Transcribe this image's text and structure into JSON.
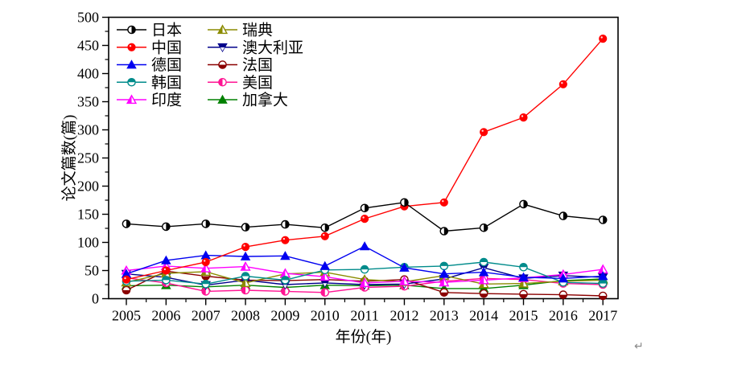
{
  "chart_data": {
    "type": "line",
    "title": "",
    "xlabel": "年份(年)",
    "ylabel": "论文篇数(篇)",
    "x_categories": [
      "2005",
      "2006",
      "2007",
      "2008",
      "2009",
      "2010",
      "2011",
      "2012",
      "2013",
      "2014",
      "2015",
      "2016",
      "2017"
    ],
    "ylim": [
      0,
      500
    ],
    "y_ticks": [
      0,
      50,
      100,
      150,
      200,
      250,
      300,
      350,
      400,
      450,
      500
    ],
    "y_minor_step": 25,
    "grid": "off",
    "legend_position": "top-left-inside",
    "legend_columns": [
      [
        "日本",
        "中国",
        "德国",
        "韩国",
        "印度"
      ],
      [
        "瑞典",
        "澳大利亚",
        "法国",
        "美国",
        "加拿大"
      ]
    ],
    "series": [
      {
        "id": "japan",
        "name": "日本",
        "color": "#000000",
        "marker": "circle-right",
        "values": [
          133,
          128,
          133,
          127,
          132,
          126,
          161,
          171,
          120,
          126,
          168,
          147,
          140
        ]
      },
      {
        "id": "china",
        "name": "中国",
        "color": "#ff0000",
        "marker": "circle",
        "values": [
          34,
          50,
          65,
          92,
          104,
          111,
          142,
          164,
          171,
          296,
          322,
          381,
          462
        ]
      },
      {
        "id": "germany",
        "name": "德国",
        "color": "#0000f0",
        "marker": "tri-up",
        "values": [
          44,
          68,
          77,
          75,
          76,
          58,
          93,
          55,
          44,
          47,
          38,
          36,
          40
        ]
      },
      {
        "id": "korea",
        "name": "韩国",
        "color": "#008b8b",
        "marker": "circle-top",
        "values": [
          31,
          33,
          26,
          40,
          33,
          51,
          52,
          56,
          58,
          65,
          56,
          29,
          27
        ]
      },
      {
        "id": "india",
        "name": "印度",
        "color": "#ff00ff",
        "marker": "tri-up-left",
        "values": [
          50,
          58,
          54,
          57,
          45,
          39,
          28,
          31,
          29,
          33,
          37,
          43,
          52
        ]
      },
      {
        "id": "sweden",
        "name": "瑞典",
        "color": "#8b8b00",
        "marker": "tri-up-left",
        "values": [
          29,
          45,
          48,
          28,
          44,
          47,
          34,
          30,
          41,
          26,
          27,
          31,
          33
        ]
      },
      {
        "id": "australia",
        "name": "澳大利亚",
        "color": "#00008b",
        "marker": "tri-down-top",
        "values": [
          44,
          38,
          24,
          33,
          25,
          28,
          25,
          26,
          35,
          55,
          36,
          41,
          38
        ]
      },
      {
        "id": "france",
        "name": "法国",
        "color": "#8b0000",
        "marker": "circle-bottom",
        "values": [
          15,
          49,
          40,
          33,
          32,
          34,
          31,
          34,
          11,
          9,
          8,
          7,
          5
        ]
      },
      {
        "id": "usa",
        "name": "美国",
        "color": "#ff1493",
        "marker": "circle-left",
        "values": [
          37,
          28,
          13,
          15,
          13,
          11,
          20,
          22,
          31,
          36,
          34,
          27,
          25
        ]
      },
      {
        "id": "canada",
        "name": "加拿大",
        "color": "#008000",
        "marker": "tri-up",
        "values": [
          23,
          24,
          21,
          24,
          20,
          24,
          23,
          24,
          18,
          18,
          24,
          32,
          35
        ]
      }
    ]
  },
  "annotations": {
    "return_mark": "↵"
  }
}
